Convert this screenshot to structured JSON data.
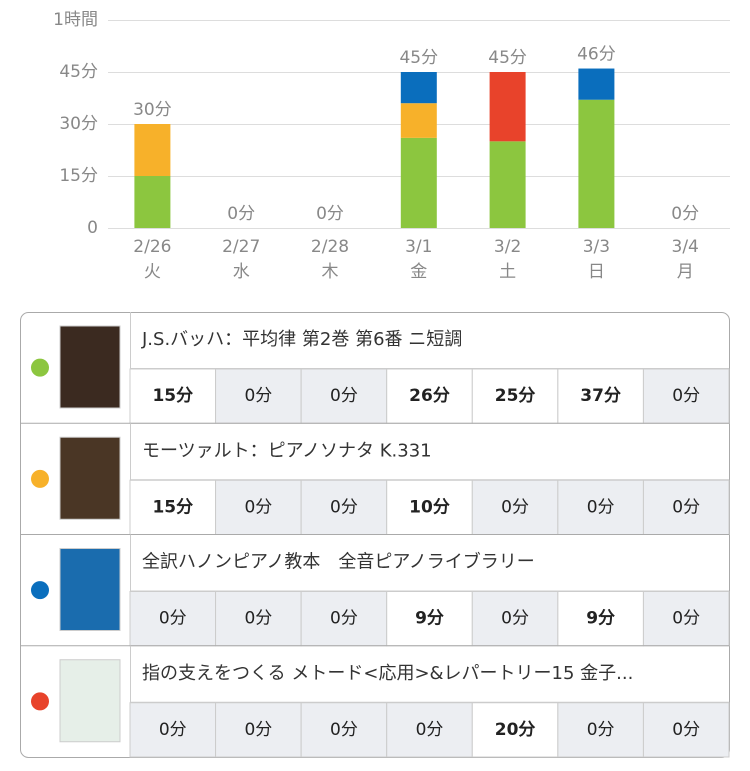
{
  "chart_data": {
    "type": "stacked-bar",
    "categories": [
      "2/26",
      "2/27",
      "2/28",
      "3/1",
      "3/2",
      "3/3",
      "3/4"
    ],
    "weekdays": [
      "火",
      "水",
      "木",
      "金",
      "土",
      "日",
      "月"
    ],
    "total_labels": [
      "30分",
      "0分",
      "0分",
      "45分",
      "45分",
      "46分",
      "0分"
    ],
    "ylim": [
      0,
      60
    ],
    "yticks": [
      0,
      {
        "value": 15,
        "label": "15分"
      },
      {
        "value": 30,
        "label": "30分"
      },
      {
        "value": 45,
        "label": "45分"
      },
      {
        "value": 60,
        "label": "1時間"
      }
    ],
    "grid": true,
    "series": [
      {
        "name": "J.S.バッハ：平均律 第2巻 第6番 ニ短調",
        "color": "#8cc63f",
        "values": [
          15,
          0,
          0,
          26,
          25,
          37,
          0
        ],
        "value_labels": [
          "15分",
          "0分",
          "0分",
          "26分",
          "25分",
          "37分",
          "0分"
        ]
      },
      {
        "name": "モーツァルト：ピアノソナタ K.331",
        "color": "#f7b12a",
        "values": [
          15,
          0,
          0,
          10,
          0,
          0,
          0
        ],
        "value_labels": [
          "15分",
          "0分",
          "0分",
          "10分",
          "0分",
          "0分",
          "0分"
        ]
      },
      {
        "name": "全訳ハノンピアノ教本　全音ピアノライブラリー",
        "color": "#0a6ebd",
        "values": [
          0,
          0,
          0,
          9,
          0,
          9,
          0
        ],
        "value_labels": [
          "0分",
          "0分",
          "0分",
          "9分",
          "0分",
          "9分",
          "0分"
        ]
      },
      {
        "name": "指の支えをつくる メトード<応用>&レパートリー15 金子...",
        "color": "#e8432b",
        "values": [
          0,
          0,
          0,
          0,
          20,
          0,
          0
        ],
        "value_labels": [
          "0分",
          "0分",
          "0分",
          "0分",
          "20分",
          "0分",
          "0分"
        ]
      }
    ]
  }
}
